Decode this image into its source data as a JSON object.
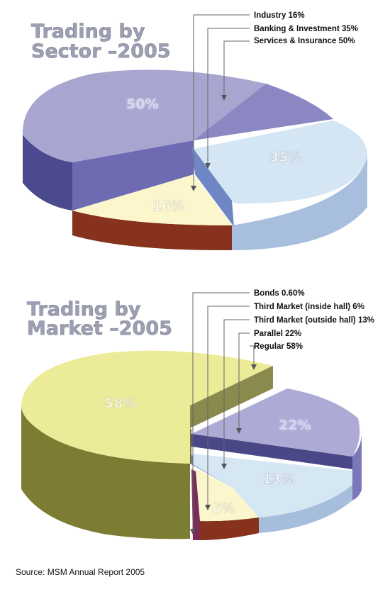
{
  "chart_data": [
    {
      "type": "pie",
      "title_line1": "Trading by",
      "title_line2": "Sector –2005",
      "legend": [
        "Industry 16%",
        "Banking & Investment 35%",
        "Services & Insurance 50%"
      ],
      "series": [
        {
          "name": "Services & Insurance",
          "value": 50,
          "label": "50%",
          "color": "#a5a3cf"
        },
        {
          "name": "Banking & Investment",
          "value": 35,
          "label": "35%",
          "color": "#d4e5f3"
        },
        {
          "name": "Industry",
          "value": 16,
          "label": "16%",
          "color": "#fbf6cc"
        }
      ]
    },
    {
      "type": "pie",
      "title_line1": "Trading by",
      "title_line2": "Market –2005",
      "legend": [
        "Bonds 0.60%",
        "Third Market (inside hall) 6%",
        "Third Market (outside hall) 13%",
        "Parallel 22%",
        "Regular 58%"
      ],
      "series": [
        {
          "name": "Regular",
          "value": 58,
          "label": "58%",
          "color": "#eceb98"
        },
        {
          "name": "Parallel",
          "value": 22,
          "label": "22%",
          "color": "#aeaad6"
        },
        {
          "name": "Third Market (outside hall)",
          "value": 13,
          "label": "13%",
          "color": "#d6e7f4"
        },
        {
          "name": "Third Market (inside hall)",
          "value": 6,
          "label": "6%",
          "color": "#fbf6cc"
        },
        {
          "name": "Bonds",
          "value": 0.6,
          "label": "",
          "color": "#7a2d5a"
        }
      ]
    }
  ],
  "source": "Source: MSM Annual Report 2005"
}
